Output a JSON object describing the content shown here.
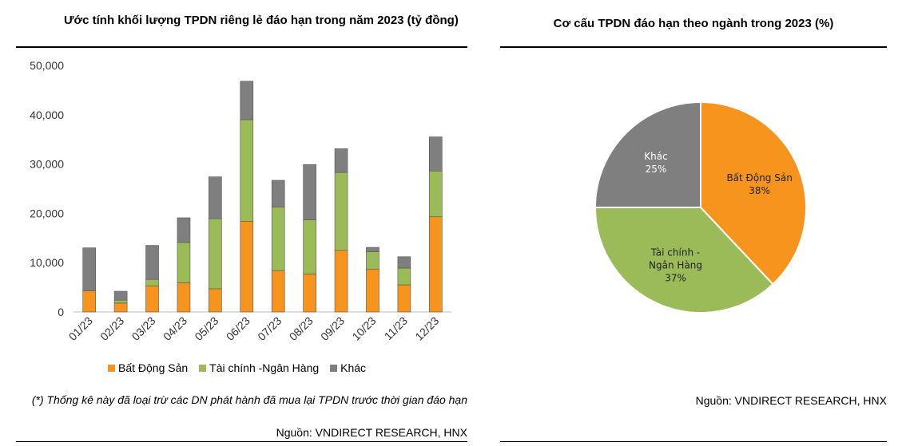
{
  "left": {
    "title": "Ước tính khối lượng TPDN riêng lẻ đáo hạn trong năm 2023 (tỷ đồng)",
    "note": "(*) Thống kê này đã loại trừ các DN phát hành đã mua lại TPDN trước thời gian đáo hạn",
    "source": "Nguồn: VNDIRECT RESEARCH, HNX"
  },
  "right": {
    "title": "Cơ cấu TPDN đáo hạn theo ngành trong 2023 (%)",
    "source": "Nguồn: VNDIRECT RESEARCH, HNX"
  },
  "chart_data": [
    {
      "type": "bar",
      "stacked": true,
      "title": "Ước tính khối lượng TPDN riêng lẻ đáo hạn trong năm 2023 (tỷ đồng)",
      "categories": [
        "01/23",
        "02/23",
        "03/23",
        "04/23",
        "05/23",
        "06/23",
        "07/23",
        "08/23",
        "09/23",
        "10/23",
        "11/23",
        "12/23"
      ],
      "series": [
        {
          "name": "Bất Động Sản",
          "color": "#F7941D",
          "values": [
            4300,
            1800,
            5300,
            5900,
            4700,
            18400,
            8400,
            7700,
            12500,
            8700,
            5500,
            19300
          ]
        },
        {
          "name": "Tài chính -Ngân Hàng",
          "color": "#9BBB59",
          "values": [
            0,
            600,
            1300,
            8200,
            14200,
            20600,
            12900,
            11000,
            15800,
            3500,
            3400,
            9300
          ]
        },
        {
          "name": "Khác",
          "color": "#7F7F80",
          "values": [
            8700,
            1800,
            6900,
            5000,
            8500,
            7800,
            5400,
            11200,
            4800,
            900,
            2300,
            6900
          ]
        }
      ],
      "yticks": [
        "0",
        "10,000",
        "20,000",
        "30,000",
        "40,000",
        "50,000"
      ],
      "ylim": [
        0,
        50000
      ],
      "legend_position": "bottom"
    },
    {
      "type": "pie",
      "title": "Cơ cấu TPDN đáo hạn theo ngành trong 2023 (%)",
      "slices": [
        {
          "name": "Bất Động Sản",
          "value": 38,
          "label": "38%",
          "color": "#F7941D",
          "label_lines": [
            "Bất Động Sản"
          ]
        },
        {
          "name": "Tài chính - Ngân Hàng",
          "value": 37,
          "label": "37%",
          "color": "#9BBB59",
          "label_lines": [
            "Tài chính -",
            "Ngân Hàng"
          ]
        },
        {
          "name": "Khác",
          "value": 25,
          "label": "25%",
          "color": "#7F7F80",
          "label_lines": [
            "Khác"
          ]
        }
      ]
    }
  ]
}
